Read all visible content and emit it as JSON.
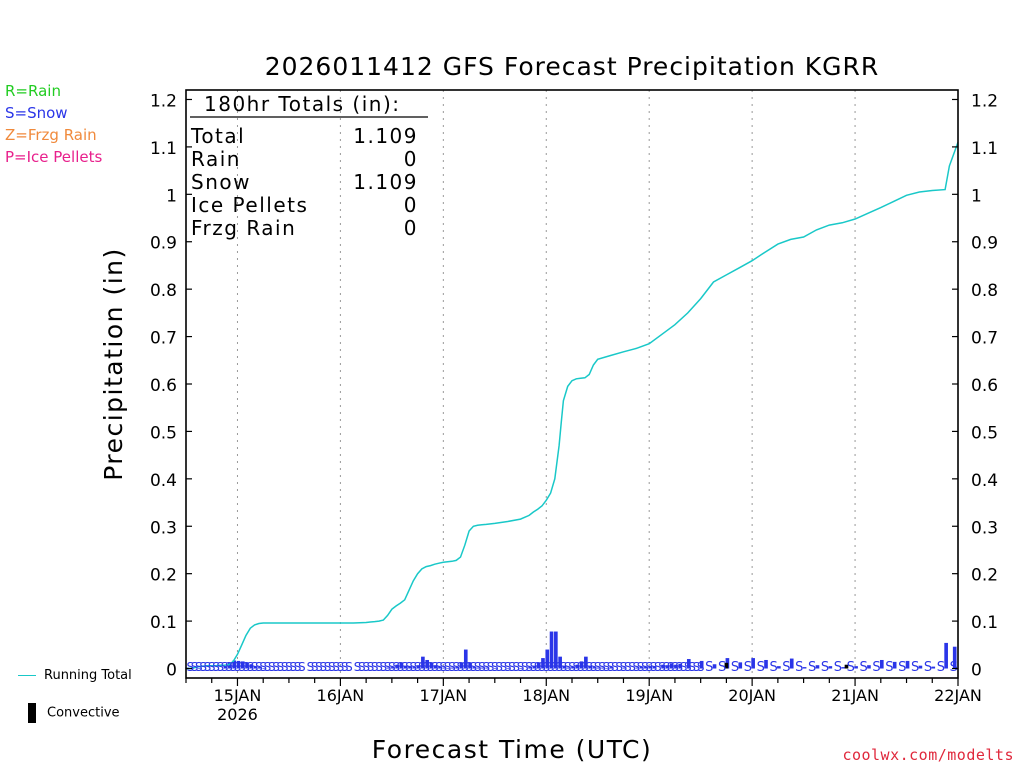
{
  "colors": {
    "rain": "#22cc22",
    "snow": "#2a35e8",
    "frzg": "#f08a3c",
    "ice": "#e8208c",
    "running_total": "#19c8c8",
    "convective": "#000000",
    "credit": "#e0283c"
  },
  "type_legend": [
    {
      "label": "R=Rain",
      "color": "#22cc22"
    },
    {
      "label": "S=Snow",
      "color": "#2a35e8"
    },
    {
      "label": "Z=Frzg Rain",
      "color": "#f08a3c"
    },
    {
      "label": "P=Ice Pellets",
      "color": "#e8208c"
    }
  ],
  "legend": {
    "running_total": "Running Total",
    "convective": "Convective"
  },
  "credit": "coolwx.com/modelts",
  "chart_data": {
    "type": "bar+line",
    "title": "2026011412 GFS Forecast Precipitation KGRR",
    "xlabel": "Forecast Time (UTC)",
    "ylabel": "Precipitation (in)",
    "ylim": [
      -0.02,
      1.22
    ],
    "yticks": [
      0,
      0.1,
      0.2,
      0.3,
      0.4,
      0.5,
      0.6,
      0.7,
      0.8,
      0.9,
      1,
      1.1,
      1.2
    ],
    "ytick_labels": [
      "0",
      "0.1",
      "0.2",
      "0.3",
      "0.4",
      "0.5",
      "0.6",
      "0.7",
      "0.8",
      "0.9",
      "1",
      "1.1",
      "1.2"
    ],
    "xlim_hours": [
      0,
      180
    ],
    "xticks": [
      {
        "hour": 12,
        "label": "15JAN",
        "sublabel": "2026"
      },
      {
        "hour": 36,
        "label": "16JAN"
      },
      {
        "hour": 60,
        "label": "17JAN"
      },
      {
        "hour": 84,
        "label": "18JAN"
      },
      {
        "hour": 108,
        "label": "19JAN"
      },
      {
        "hour": 132,
        "label": "20JAN"
      },
      {
        "hour": 156,
        "label": "21JAN"
      },
      {
        "hour": 180,
        "label": "22JAN"
      }
    ],
    "totals_box": {
      "header": "180hr Totals (in):",
      "rows": [
        {
          "label": "Total",
          "value": "1.109"
        },
        {
          "label": "Rain",
          "value": "0"
        },
        {
          "label": "Snow",
          "value": "1.109"
        },
        {
          "label": "Ice Pellets",
          "value": "0"
        },
        {
          "label": "Frzg Rain",
          "value": "0"
        }
      ]
    },
    "running_total": {
      "name": "Running Total",
      "x_hours": [
        0,
        1,
        2,
        3,
        4,
        5,
        6,
        7,
        8,
        9,
        10,
        11,
        12,
        13,
        14,
        15,
        16,
        17,
        18,
        20,
        22,
        24,
        27,
        30,
        33,
        36,
        39,
        42,
        43,
        44,
        45,
        46,
        47,
        48,
        49,
        50,
        51,
        52,
        53,
        54,
        55,
        56,
        57,
        58,
        59,
        60,
        61,
        62,
        63,
        64,
        65,
        66,
        67,
        68,
        69,
        70,
        71,
        72,
        75,
        78,
        80,
        81,
        82,
        83,
        84,
        85,
        86,
        87,
        87.5,
        88,
        89,
        90,
        91,
        92,
        93,
        94,
        95,
        96,
        99,
        102,
        105,
        108,
        111,
        114,
        117,
        120,
        123,
        126,
        129,
        132,
        135,
        138,
        141,
        144,
        147,
        150,
        153,
        156,
        159,
        162,
        165,
        168,
        171,
        174,
        177,
        178,
        180
      ],
      "values": [
        0,
        0,
        0.002,
        0.004,
        0.005,
        0.006,
        0.006,
        0.006,
        0.007,
        0.007,
        0.008,
        0.015,
        0.03,
        0.05,
        0.07,
        0.085,
        0.092,
        0.095,
        0.096,
        0.096,
        0.096,
        0.096,
        0.096,
        0.096,
        0.096,
        0.096,
        0.096,
        0.097,
        0.098,
        0.099,
        0.1,
        0.102,
        0.112,
        0.125,
        0.132,
        0.138,
        0.145,
        0.165,
        0.185,
        0.2,
        0.21,
        0.215,
        0.217,
        0.22,
        0.222,
        0.224,
        0.225,
        0.226,
        0.228,
        0.235,
        0.26,
        0.29,
        0.3,
        0.302,
        0.303,
        0.304,
        0.305,
        0.306,
        0.31,
        0.315,
        0.323,
        0.33,
        0.336,
        0.343,
        0.355,
        0.37,
        0.4,
        0.47,
        0.52,
        0.565,
        0.595,
        0.607,
        0.611,
        0.612,
        0.613,
        0.62,
        0.64,
        0.652,
        0.66,
        0.668,
        0.675,
        0.685,
        0.705,
        0.725,
        0.75,
        0.78,
        0.815,
        0.83,
        0.845,
        0.86,
        0.878,
        0.895,
        0.905,
        0.91,
        0.925,
        0.935,
        0.94,
        0.948,
        0.96,
        0.972,
        0.985,
        0.998,
        1.005,
        1.008,
        1.01,
        1.06,
        1.11
      ]
    },
    "bars": {
      "name": "Snow (3-hr)",
      "color": "#2a35e8",
      "x_hours": [
        0,
        3,
        9,
        10,
        11,
        12,
        13,
        14,
        15,
        16,
        17,
        18,
        47,
        48,
        49,
        50,
        51,
        52,
        53,
        54,
        55,
        56,
        57,
        58,
        59,
        60,
        61,
        62,
        63,
        64,
        65,
        66,
        67,
        68,
        69,
        70,
        72,
        75,
        78,
        80,
        81,
        82,
        83,
        84,
        85,
        86,
        87,
        88,
        89,
        90,
        91,
        92,
        93,
        94,
        95,
        96,
        97,
        98,
        99,
        102,
        105,
        106,
        107,
        108,
        109,
        111,
        112,
        113,
        114,
        115,
        117,
        120,
        123,
        126,
        129,
        132,
        135,
        138,
        141,
        144,
        147,
        150,
        153,
        156,
        159,
        162,
        165,
        168,
        171,
        174,
        177,
        179
      ],
      "values": [
        0.002,
        0.001,
        0.005,
        0.012,
        0.017,
        0.016,
        0.015,
        0.012,
        0.009,
        0.005,
        0.003,
        0.001,
        0.002,
        0.003,
        0.008,
        0.012,
        0.006,
        0.005,
        0.003,
        0.007,
        0.025,
        0.018,
        0.012,
        0.007,
        0.004,
        0.002,
        0.001,
        0.002,
        0.003,
        0.012,
        0.04,
        0.012,
        0.003,
        0.002,
        0.002,
        0.002,
        0.001,
        0.001,
        0.001,
        0.003,
        0.006,
        0.012,
        0.022,
        0.04,
        0.078,
        0.078,
        0.025,
        0.006,
        0.002,
        0.004,
        0.008,
        0.015,
        0.025,
        0.006,
        0.003,
        0.002,
        0.002,
        0.001,
        0.003,
        0.002,
        0.002,
        0.004,
        0.004,
        0.005,
        0.005,
        0.008,
        0.007,
        0.011,
        0.008,
        0.01,
        0.02,
        0.016,
        0.009,
        0.022,
        0.013,
        0.022,
        0.018,
        0.005,
        0.021,
        0.003,
        0.007,
        0.005,
        0.003,
        0.005,
        0.007,
        0.018,
        0.014,
        0.016,
        0.006,
        0.004,
        0.054,
        0.046
      ]
    },
    "convective_bars": {
      "name": "Convective",
      "x_hours": [
        126,
        154
      ],
      "values": [
        0.012,
        0.008
      ]
    },
    "type_markers": {
      "symbol": "S",
      "dense_ranges_hours": [
        [
          1,
          27
        ],
        [
          29,
          38
        ],
        [
          40,
          120
        ]
      ],
      "sparse_start_hour": 122,
      "sparse_step_hours": 3,
      "sparse_end_hour": 180
    }
  }
}
